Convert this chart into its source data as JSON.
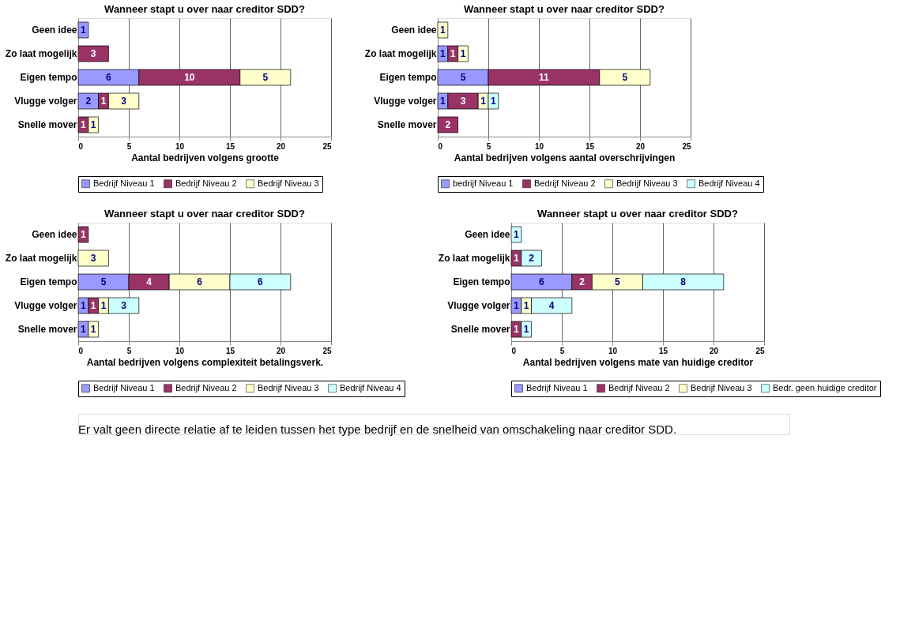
{
  "chart_data": [
    {
      "type": "bar",
      "orientation": "horizontal",
      "stacked": true,
      "title": "Wanneer stapt u over naar creditor SDD?",
      "xlabel": "Aantal bedrijven volgens grootte",
      "categories": [
        "Geen idee",
        "Zo laat mogelijk",
        "Eigen tempo",
        "Vlugge volger",
        "Snelle mover"
      ],
      "xlim": [
        0,
        25
      ],
      "xticks": [
        0,
        5,
        10,
        15,
        20,
        25
      ],
      "grid": "x",
      "legend": "bottom",
      "data_labels": true,
      "series": [
        {
          "name": "Bedrijf Niveau 1",
          "color": "#9999ff",
          "values": [
            1,
            null,
            6,
            2,
            null
          ]
        },
        {
          "name": "Bedrijf Niveau 2",
          "color": "#993366",
          "values": [
            null,
            3,
            10,
            1,
            1
          ]
        },
        {
          "name": "Bedrijf Niveau 3",
          "color": "#ffffcc",
          "values": [
            null,
            null,
            5,
            3,
            1
          ]
        }
      ]
    },
    {
      "type": "bar",
      "orientation": "horizontal",
      "stacked": true,
      "title": "Wanneer stapt u over naar creditor SDD?",
      "xlabel": "Aantal bedrijven volgens aantal overschrijvingen",
      "categories": [
        "Geen idee",
        "Zo laat mogelijk",
        "Eigen tempo",
        "Vlugge volger",
        "Snelle mover"
      ],
      "xlim": [
        0,
        25
      ],
      "xticks": [
        0,
        5,
        10,
        15,
        20,
        25
      ],
      "grid": "x",
      "legend": "bottom",
      "data_labels": true,
      "series": [
        {
          "name": "bedrijf Niveau 1",
          "color": "#9999ff",
          "values": [
            null,
            1,
            5,
            1,
            null
          ]
        },
        {
          "name": "Bedrijf Niveau 2",
          "color": "#993366",
          "values": [
            null,
            1,
            11,
            3,
            2
          ]
        },
        {
          "name": "Bedrijf Niveau 3",
          "color": "#ffffcc",
          "values": [
            1,
            1,
            5,
            1,
            null
          ]
        },
        {
          "name": "Bedrijf Niveau 4",
          "color": "#ccffff",
          "values": [
            null,
            null,
            null,
            1,
            null
          ]
        }
      ]
    },
    {
      "type": "bar",
      "orientation": "horizontal",
      "stacked": true,
      "title": "Wanneer stapt u over naar creditor SDD?",
      "xlabel": "Aantal bedrijven volgens complexiteit betalingsverk.",
      "categories": [
        "Geen idee",
        "Zo laat mogelijk",
        "Eigen tempo",
        "Vlugge volger",
        "Snelle mover"
      ],
      "xlim": [
        0,
        25
      ],
      "xticks": [
        0,
        5,
        10,
        15,
        20,
        25
      ],
      "grid": "x",
      "legend": "bottom",
      "data_labels": true,
      "series": [
        {
          "name": "Bedrijf Niveau 1",
          "color": "#9999ff",
          "values": [
            null,
            null,
            5,
            1,
            1
          ]
        },
        {
          "name": "Bedrijf Niveau 2",
          "color": "#993366",
          "values": [
            1,
            null,
            4,
            1,
            null
          ]
        },
        {
          "name": "Bedrijf Niveau 3",
          "color": "#ffffcc",
          "values": [
            null,
            3,
            6,
            1,
            1
          ]
        },
        {
          "name": "Bedrijf Niveau 4",
          "color": "#ccffff",
          "values": [
            null,
            null,
            6,
            3,
            null
          ]
        }
      ]
    },
    {
      "type": "bar",
      "orientation": "horizontal",
      "stacked": true,
      "title": "Wanneer stapt u over naar creditor SDD?",
      "xlabel": "Aantal bedrijven volgens mate van huidige creditor",
      "categories": [
        "Geen idee",
        "Zo laat mogelijk",
        "Eigen tempo",
        "Vlugge volger",
        "Snelle mover"
      ],
      "xlim": [
        0,
        25
      ],
      "xticks": [
        0,
        5,
        10,
        15,
        20,
        25
      ],
      "grid": "x",
      "legend": "bottom",
      "data_labels": true,
      "series": [
        {
          "name": "Bedrijf Niveau 1",
          "color": "#9999ff",
          "values": [
            null,
            null,
            6,
            1,
            null
          ]
        },
        {
          "name": "Bedrijf Niveau 2",
          "color": "#993366",
          "values": [
            null,
            1,
            2,
            null,
            1
          ]
        },
        {
          "name": "Bedrijf Niveau 3",
          "color": "#ffffcc",
          "values": [
            null,
            null,
            5,
            1,
            null
          ]
        },
        {
          "name": "Bedr. geen huidige creditor",
          "color": "#ccffff",
          "values": [
            1,
            2,
            8,
            4,
            1
          ]
        }
      ]
    },
    {
      "type": "other",
      "annotations": [
        "Er valt geen directe relatie af te leiden tussen het type bedrijf en de snelheid van omschakeling naar creditor SDD."
      ]
    }
  ]
}
